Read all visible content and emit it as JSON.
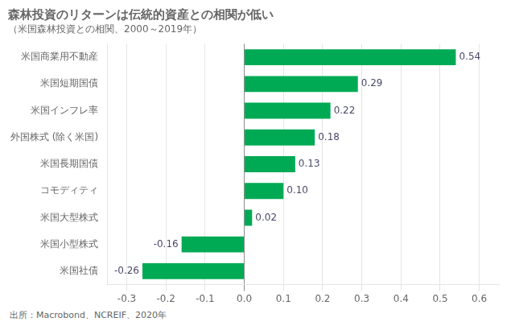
{
  "chart_data": {
    "type": "bar",
    "orientation": "horizontal",
    "title": "森林投資のリターンは伝統的資産との相関が低い",
    "subtitle": "（米国森林投資との相関、2000～2019年）",
    "footer": "出所：Macrobond、NCREIF、2020年",
    "categories": [
      "米国商業用不動産",
      "米国短期国債",
      "米国インフレ率",
      "外国株式 (除く米国)",
      "米国長期国債",
      "コモディティ",
      "米国大型株式",
      "米国小型株式",
      "米国社債"
    ],
    "values": [
      0.54,
      0.29,
      0.22,
      0.18,
      0.13,
      0.1,
      0.02,
      -0.16,
      -0.26
    ],
    "value_labels": [
      "0.54",
      "0.29",
      "0.22",
      "0.18",
      "0.13",
      "0.10",
      "0.02",
      "-0.16",
      "-0.26"
    ],
    "data_labels": true,
    "color": "#00aa55",
    "xlim": [
      -0.35,
      0.65
    ],
    "xticks": [
      -0.3,
      -0.2,
      -0.1,
      {
        "value": 0.0,
        "label": "0.0"
      },
      0.1,
      0.2,
      0.3,
      0.4,
      0.5,
      0.6
    ],
    "grid": true
  }
}
